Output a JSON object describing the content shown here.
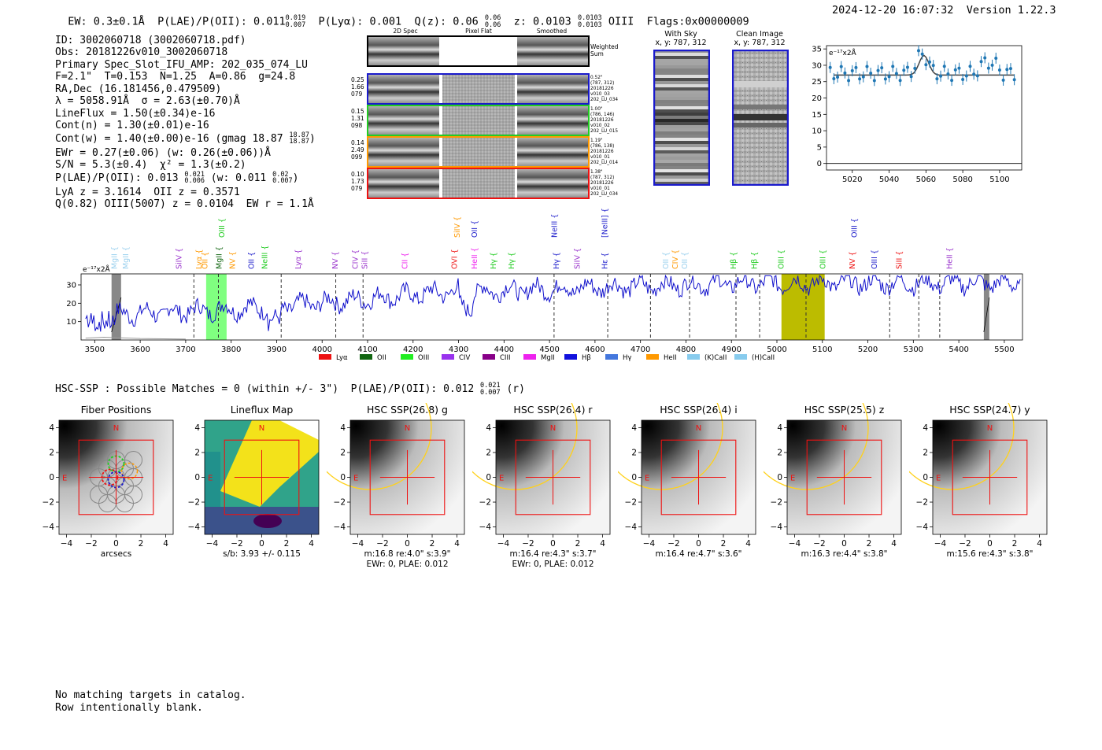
{
  "header": {
    "ew": "EW: 0.3±0.1Å",
    "plae_label": "P(LAE)/P(OII):",
    "plae_val": "0.011",
    "plae_hi": "0.019",
    "plae_lo": "0.007",
    "plya": "P(Lyα): 0.001",
    "qz_label": "Q(z):",
    "qz_val": "0.06",
    "qz_hi": "0.06",
    "qz_lo": "0.06",
    "z_label": "z:",
    "z_val": "0.0103",
    "z_hi": "0.0103",
    "z_lo": "0.0103",
    "line": "OIII",
    "flags": "Flags:0x00000009",
    "timestamp": "2024-12-20 16:07:32",
    "version": "Version 1.22.3"
  },
  "info": {
    "id": "ID: 3002060718 (3002060718.pdf)",
    "obs": "Obs: 20181226v010_3002060718",
    "primary": "Primary Spec_Slot_IFU_AMP: 202_035_074_LU",
    "fit": "F=2.1\"  T=0.153  N=1.25  A=0.86  g=24.8",
    "radec": "RA,Dec (16.181456,0.479509)",
    "lambda": "λ = 5058.91Å  σ = 2.63(±0.70)Å",
    "lineflux": "LineFlux = 1.50(±0.34)e-16",
    "contn": "Cont(n) = 1.30(±0.01)e-16",
    "contw": "Cont(w) = 1.40(±0.00)e-16 (gmag 18.87",
    "contw_hi": "18.87",
    "contw_lo": "18.87",
    "contw_end": ")",
    "ewr": "EWr = 0.27(±0.06) (w: 0.26(±0.06))Å",
    "sn": "S/N = 5.3(±0.4)  χ² = 1.3(±0.2)",
    "plae2": "P(LAE)/P(OII): 0.013",
    "plae2_hi": "0.021",
    "plae2_lo": "0.006",
    "plae2_mid": " (w: 0.011",
    "plae2_whi": "0.02",
    "plae2_wlo": "0.007",
    "plae2_end": ")",
    "lya": "LyA z = 3.1614  OII z = 0.3571",
    "q": "Q(0.82) OIII(5007) z = 0.0104  EW r = 1.1Å"
  },
  "cutouts": {
    "col_2d": "2D Spec",
    "col_flat": "Pixel Flat",
    "col_smooth": "Smoothed",
    "weighted": "Weighted\nSum",
    "rows": [
      {
        "left": "0.25\n1.66\n079",
        "right": "0.52\"\n(787, 312)\n20181226\nv010_03\n202_LU_034",
        "color": "#1a1acc"
      },
      {
        "left": "0.15\n1.31\n098",
        "right": "1.00\"\n(786, 146)\n20181226\nv010_02\n202_LU_015",
        "color": "#22cc22"
      },
      {
        "left": "0.14\n2.49\n099",
        "right": "1.19\"\n(786, 138)\n20181226\nv010_01\n202_LU_014",
        "color": "#ff9900"
      },
      {
        "left": "0.10\n1.73\n079",
        "right": "1.38\"\n(787, 312)\n20181226\nv010_01\n202_LU_034",
        "color": "#ee1111"
      }
    ]
  },
  "sky": {
    "with_sky": "With Sky",
    "with_sky_xy": "x, y: 787, 312",
    "clean": "Clean Image",
    "clean_xy": "x, y: 787, 312"
  },
  "zoom_plot": {
    "ylabel": "e⁻¹⁷x2Å",
    "xticks": [
      "5020",
      "5040",
      "5060",
      "5080",
      "5100"
    ],
    "yticks": [
      "0",
      "5",
      "10",
      "15",
      "20",
      "25",
      "30",
      "35"
    ]
  },
  "spectrum": {
    "ylabel": "e⁻¹⁷x2Å",
    "xticks": [
      "3500",
      "3600",
      "3700",
      "3800",
      "3900",
      "4000",
      "4100",
      "4200",
      "4300",
      "4400",
      "4500",
      "4600",
      "4700",
      "4800",
      "4900",
      "5000",
      "5100",
      "5200",
      "5300",
      "5400",
      "5500"
    ],
    "yticks": [
      "10",
      "20",
      "30"
    ],
    "line_labels": [
      {
        "t": "MgII",
        "c": "#9ad0ee",
        "x": 0.04,
        "row": 2
      },
      {
        "t": "MgII",
        "c": "#9ad0ee",
        "x": 0.052,
        "row": 2
      },
      {
        "t": "SiIV",
        "c": "#9933cc",
        "x": 0.108,
        "row": 2
      },
      {
        "t": "Lyα",
        "c": "#ff9900",
        "x": 0.129,
        "row": 2
      },
      {
        "t": "OII",
        "c": "#ff9900",
        "x": 0.135,
        "row": 2
      },
      {
        "t": "MgII",
        "c": "#116611",
        "x": 0.15,
        "row": 2
      },
      {
        "t": "OIII",
        "c": "#22cc22",
        "x": 0.153,
        "row": 0
      },
      {
        "t": "NV",
        "c": "#ff9900",
        "x": 0.164,
        "row": 2
      },
      {
        "t": "OII",
        "c": "#2222cc",
        "x": 0.184,
        "row": 2
      },
      {
        "t": "NeIII",
        "c": "#22cc22",
        "x": 0.198,
        "row": 2
      },
      {
        "t": "Lyα",
        "c": "#9933cc",
        "x": 0.233,
        "row": 2
      },
      {
        "t": "NV",
        "c": "#9933cc",
        "x": 0.272,
        "row": 2
      },
      {
        "t": "CIV",
        "c": "#9933cc",
        "x": 0.293,
        "row": 2
      },
      {
        "t": "SiII",
        "c": "#9933cc",
        "x": 0.303,
        "row": 2
      },
      {
        "t": "CII",
        "c": "#ee22ee",
        "x": 0.345,
        "row": 2
      },
      {
        "t": "SiIV",
        "c": "#ff9900",
        "x": 0.4,
        "row": 0
      },
      {
        "t": "OVI",
        "c": "#ee1111",
        "x": 0.397,
        "row": 2
      },
      {
        "t": "OII",
        "c": "#2222cc",
        "x": 0.418,
        "row": 0
      },
      {
        "t": "HeII",
        "c": "#ee22ee",
        "x": 0.418,
        "row": 2
      },
      {
        "t": "Hγ",
        "c": "#22cc22",
        "x": 0.438,
        "row": 2
      },
      {
        "t": "Hγ",
        "c": "#22cc22",
        "x": 0.457,
        "row": 2
      },
      {
        "t": "NeIII",
        "c": "#2222cc",
        "x": 0.502,
        "row": 0
      },
      {
        "t": "Hγ",
        "c": "#2222cc",
        "x": 0.504,
        "row": 2
      },
      {
        "t": "SiIV",
        "c": "#9933cc",
        "x": 0.526,
        "row": 2
      },
      {
        "t": "[NeIII]",
        "c": "#2222cc",
        "x": 0.555,
        "row": 0
      },
      {
        "t": "Hε",
        "c": "#2222cc",
        "x": 0.555,
        "row": 2
      },
      {
        "t": "OII",
        "c": "#9ad0ee",
        "x": 0.619,
        "row": 2
      },
      {
        "t": "CIV",
        "c": "#ff9900",
        "x": 0.629,
        "row": 2
      },
      {
        "t": "OII",
        "c": "#9ad0ee",
        "x": 0.639,
        "row": 2
      },
      {
        "t": "Hβ",
        "c": "#22cc22",
        "x": 0.69,
        "row": 2
      },
      {
        "t": "Hβ",
        "c": "#22cc22",
        "x": 0.712,
        "row": 2
      },
      {
        "t": "OIII",
        "c": "#22cc22",
        "x": 0.74,
        "row": 2
      },
      {
        "t": "OIII",
        "c": "#22cc22",
        "x": 0.784,
        "row": 2
      },
      {
        "t": "OIII",
        "c": "#2222cc",
        "x": 0.817,
        "row": 0
      },
      {
        "t": "NV",
        "c": "#ee1111",
        "x": 0.815,
        "row": 2
      },
      {
        "t": "OIII",
        "c": "#2222cc",
        "x": 0.838,
        "row": 2
      },
      {
        "t": "SiII",
        "c": "#ee1111",
        "x": 0.864,
        "row": 2
      },
      {
        "t": "HeII",
        "c": "#9933cc",
        "x": 0.917,
        "row": 2
      }
    ],
    "legend": [
      {
        "t": "Lyα",
        "c": "#ee1111"
      },
      {
        "t": "OII",
        "c": "#116611"
      },
      {
        "t": "OIII",
        "c": "#22ee22"
      },
      {
        "t": "CIV",
        "c": "#9933ee"
      },
      {
        "t": "CIII",
        "c": "#880088"
      },
      {
        "t": "MgII",
        "c": "#ee22ee"
      },
      {
        "t": "Hβ",
        "c": "#1111dd"
      },
      {
        "t": "Hγ",
        "c": "#4477dd"
      },
      {
        "t": "HeII",
        "c": "#ff9900"
      },
      {
        "t": "(K)CaII",
        "c": "#88ccee"
      },
      {
        "t": "(H)CaII",
        "c": "#88ccee"
      }
    ]
  },
  "hsc": {
    "title": "HSC-SSP : Possible Matches = 0 (within +/- 3\")  P(LAE)/P(OII): 0.012",
    "hi": "0.021",
    "lo": "0.007",
    "band": "(r)"
  },
  "panels": [
    {
      "title": "Fiber Positions",
      "cap1": "arcsecs",
      "cap2": ""
    },
    {
      "title": "Lineflux Map",
      "cap1": "s/b: 3.93 +/- 0.115",
      "cap2": ""
    },
    {
      "title": "HSC SSP(26.8) g",
      "cap1": "m:16.8  re:4.0\"  s:3.9\"",
      "cap2": "EWr: 0, PLAE: 0.012"
    },
    {
      "title": "HSC SSP(26.4) r",
      "cap1": "m:16.4  re:4.3\"  s:3.7\"",
      "cap2": "EWr: 0, PLAE: 0.012"
    },
    {
      "title": "HSC SSP(26.4) i",
      "cap1": "m:16.4  re:4.7\"  s:3.6\"",
      "cap2": ""
    },
    {
      "title": "HSC SSP(25.5) z",
      "cap1": "m:16.3  re:4.4\"  s:3.8\"",
      "cap2": ""
    },
    {
      "title": "HSC SSP(24.7) y",
      "cap1": "m:15.6  re:4.3\"  s:3.8\"",
      "cap2": ""
    }
  ],
  "panel_axes": {
    "ticks": [
      "−4",
      "−2",
      "0",
      "2",
      "4"
    ],
    "n": "N",
    "e": "E"
  },
  "footer": {
    "line1": "No matching targets in catalog.",
    "line2": "Row intentionally blank."
  }
}
